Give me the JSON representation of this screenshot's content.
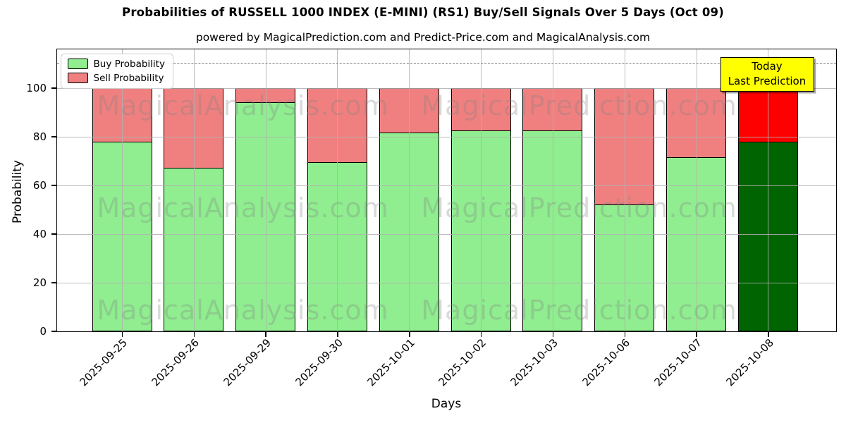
{
  "title": "Probabilities of RUSSELL 1000 INDEX (E-MINI) (RS1) Buy/Sell Signals Over 5 Days (Oct 09)",
  "subtitle": "powered by MagicalPrediction.com and Predict-Price.com and MagicalAnalysis.com",
  "chart_data": {
    "type": "bar",
    "stacked": true,
    "title": "Probabilities of RUSSELL 1000 INDEX (E-MINI) (RS1) Buy/Sell Signals Over 5 Days (Oct 09)",
    "xlabel": "Days",
    "ylabel": "Probability",
    "categories": [
      "2025-09-25",
      "2025-09-26",
      "2025-09-29",
      "2025-09-30",
      "2025-10-01",
      "2025-10-02",
      "2025-10-03",
      "2025-10-06",
      "2025-10-07",
      "2025-10-08"
    ],
    "series": [
      {
        "name": "Buy Probability",
        "color": "#90EE90",
        "values": [
          78,
          67,
          94,
          69.5,
          81.5,
          82.5,
          82.5,
          52,
          71.5,
          78
        ]
      },
      {
        "name": "Sell Probability",
        "color": "#F08080",
        "values": [
          22,
          33,
          6,
          30.5,
          18.5,
          17.5,
          17.5,
          48,
          28.5,
          22
        ]
      }
    ],
    "highlight_last_bar": {
      "buy_color": "#006400",
      "sell_color": "#FF0000"
    },
    "ylim": [
      0,
      116
    ],
    "yticks": [
      0,
      20,
      40,
      60,
      80,
      100
    ],
    "dashed_line_y": 110,
    "grid": true,
    "legend_position": "upper left"
  },
  "legend": {
    "items": [
      {
        "label": "Buy Probability",
        "color": "#90EE90"
      },
      {
        "label": "Sell Probability",
        "color": "#F08080"
      }
    ]
  },
  "annotation": {
    "line1": "Today",
    "line2": "Last Prediction",
    "bg_color": "#FFFF00"
  },
  "watermarks": {
    "left_text": "MagicalAnalysis.com",
    "right_text": "MagicalPrediction.com"
  },
  "colors": {
    "buy": "#90EE90",
    "sell": "#F08080",
    "today_buy": "#006400",
    "today_sell": "#FF0000",
    "grid": "#b0b0b0",
    "dashed_line": "#7f7f7f",
    "annotation_bg": "#FFFF00",
    "axis": "#000000"
  }
}
